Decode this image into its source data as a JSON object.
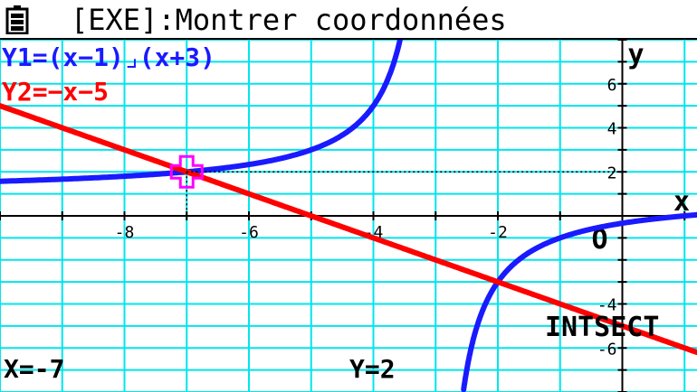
{
  "status_bar": {
    "title": "[EXE]:Montrer coordonnées",
    "battery_icon": "battery-icon"
  },
  "functions": [
    {
      "id": "Y1",
      "label": "Y1=(x−1)⌟(x+3)",
      "color": "#1a1aff"
    },
    {
      "id": "Y2",
      "label": "Y2=−x−5",
      "color": "#ff0000"
    }
  ],
  "graph": {
    "x_axis_label": "x",
    "y_axis_label": "y",
    "origin_label": "O",
    "x_range": [
      -10,
      1.2
    ],
    "y_range": [
      -8,
      8
    ],
    "x_tick_labels": [
      "-8",
      "-6",
      "-4",
      "-2"
    ],
    "y_tick_labels": [
      "6",
      "4",
      "2",
      "-4",
      "-6"
    ],
    "grid_color": "#00e5ee",
    "cursor_color": "#ff00ff",
    "cursor": {
      "x": -7,
      "y": 2
    }
  },
  "readout": {
    "x_text": "X=-7",
    "y_text": "Y=2",
    "mode_label": "INTSECT"
  }
}
